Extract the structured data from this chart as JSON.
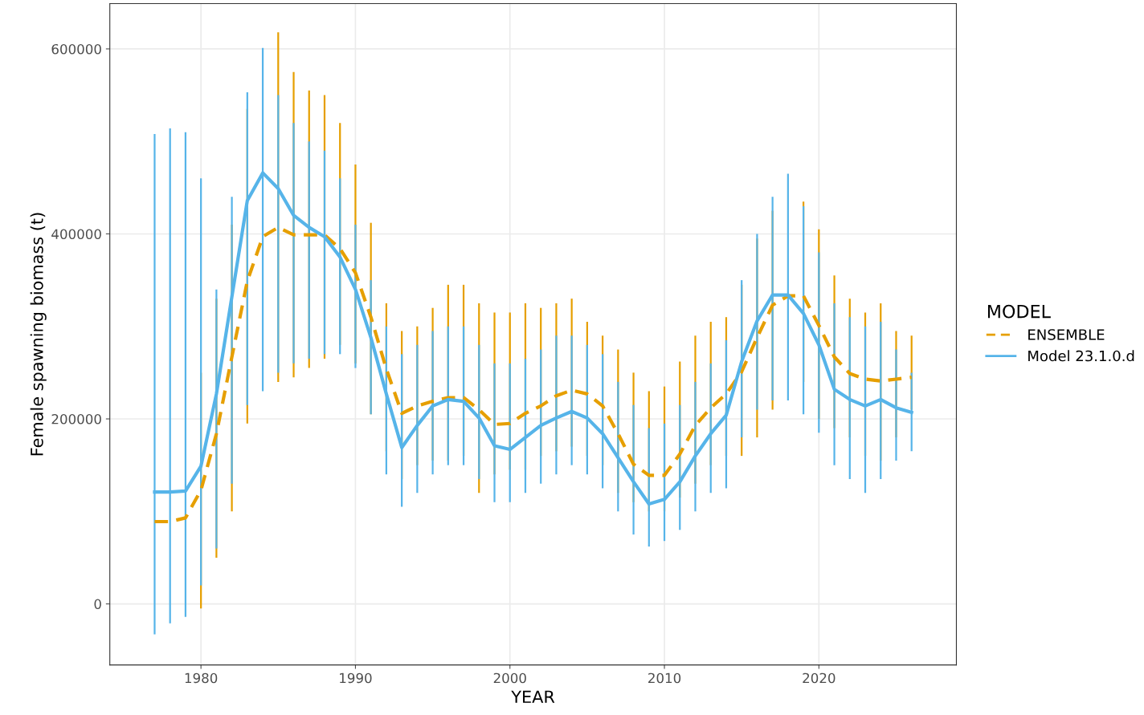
{
  "chart_data": {
    "type": "line",
    "xlabel": "YEAR",
    "ylabel": "Female spawning biomass (t)",
    "legend_title": "MODEL",
    "legend": "right",
    "grid": true,
    "marker": "none",
    "x": [
      1977,
      1978,
      1979,
      1980,
      1981,
      1982,
      1983,
      1984,
      1985,
      1986,
      1987,
      1988,
      1989,
      1990,
      1991,
      1992,
      1993,
      1994,
      1995,
      1996,
      1997,
      1998,
      1999,
      2000,
      2001,
      2002,
      2003,
      2004,
      2005,
      2006,
      2007,
      2008,
      2009,
      2010,
      2011,
      2012,
      2013,
      2014,
      2015,
      2016,
      2017,
      2018,
      2019,
      2020,
      2021,
      2022,
      2023,
      2024,
      2025,
      2026
    ],
    "xlim": [
      1974.1,
      2028.9
    ],
    "xticks": [
      1980,
      1990,
      2000,
      2010,
      2020
    ],
    "ylim": [
      -66000,
      649000
    ],
    "yticks": [
      0,
      200000,
      400000,
      600000
    ],
    "series": [
      {
        "name": "ENSEMBLE",
        "color": "#e69f00",
        "line_style": "dashed",
        "values": [
          89000,
          89000,
          93000,
          123000,
          184000,
          267000,
          349000,
          397000,
          407000,
          399000,
          399000,
          399000,
          384000,
          358000,
          310000,
          254000,
          206000,
          214000,
          219000,
          223000,
          223000,
          210000,
          194000,
          195000,
          206000,
          214000,
          225000,
          231000,
          227000,
          214000,
          184000,
          151000,
          139000,
          139000,
          162000,
          193000,
          212000,
          227000,
          251000,
          288000,
          323000,
          333000,
          333000,
          301000,
          267000,
          249000,
          243000,
          241000,
          243000,
          245000
        ],
        "errors": [
          null,
          null,
          null,
          [
            -5000,
            250000
          ],
          [
            50000,
            330000
          ],
          [
            100000,
            410000
          ],
          [
            195000,
            535000
          ],
          null,
          [
            240000,
            618000
          ],
          [
            245000,
            575000
          ],
          [
            255000,
            555000
          ],
          [
            265000,
            550000
          ],
          [
            280000,
            520000
          ],
          [
            260000,
            475000
          ],
          [
            205000,
            412000
          ],
          [
            165000,
            325000
          ],
          [
            135000,
            295000
          ],
          [
            150000,
            300000
          ],
          [
            155000,
            320000
          ],
          [
            155000,
            345000
          ],
          [
            160000,
            345000
          ],
          [
            120000,
            325000
          ],
          [
            140000,
            315000
          ],
          [
            145000,
            315000
          ],
          [
            145000,
            325000
          ],
          [
            160000,
            320000
          ],
          [
            165000,
            325000
          ],
          [
            170000,
            330000
          ],
          [
            160000,
            305000
          ],
          [
            150000,
            290000
          ],
          [
            120000,
            275000
          ],
          [
            110000,
            250000
          ],
          [
            100000,
            230000
          ],
          [
            100000,
            235000
          ],
          [
            115000,
            262000
          ],
          [
            130000,
            290000
          ],
          [
            150000,
            305000
          ],
          [
            160000,
            310000
          ],
          [
            160000,
            345000
          ],
          [
            180000,
            395000
          ],
          [
            210000,
            425000
          ],
          null,
          [
            240000,
            435000
          ],
          [
            200000,
            405000
          ],
          [
            190000,
            355000
          ],
          [
            180000,
            330000
          ],
          [
            160000,
            315000
          ],
          [
            155000,
            325000
          ],
          [
            180000,
            295000
          ],
          [
            210000,
            290000
          ]
        ]
      },
      {
        "name": "Model 23.1.0.d",
        "color": "#56b4e9",
        "line_style": "solid",
        "values": [
          121000,
          121000,
          122000,
          149000,
          227000,
          332000,
          436000,
          466000,
          449000,
          420000,
          407000,
          397000,
          375000,
          340000,
          288000,
          227000,
          169000,
          193000,
          214000,
          221000,
          219000,
          201000,
          171000,
          167000,
          180000,
          193000,
          201000,
          208000,
          201000,
          184000,
          158000,
          132000,
          108000,
          113000,
          132000,
          160000,
          184000,
          204000,
          262000,
          306000,
          334000,
          334000,
          314000,
          280000,
          232000,
          221000,
          214000,
          221000,
          212000,
          207000
        ],
        "errors": [
          [
            -33000,
            508000
          ],
          [
            -21000,
            514000
          ],
          [
            -14000,
            510000
          ],
          [
            20000,
            460000
          ],
          [
            60000,
            340000
          ],
          [
            130000,
            440000
          ],
          [
            215000,
            553000
          ],
          [
            230000,
            601000
          ],
          [
            250000,
            550000
          ],
          [
            260000,
            520000
          ],
          [
            265000,
            500000
          ],
          [
            270000,
            490000
          ],
          [
            270000,
            460000
          ],
          [
            255000,
            410000
          ],
          [
            205000,
            350000
          ],
          [
            140000,
            300000
          ],
          [
            105000,
            270000
          ],
          [
            120000,
            280000
          ],
          [
            140000,
            295000
          ],
          [
            150000,
            300000
          ],
          [
            150000,
            300000
          ],
          [
            135000,
            280000
          ],
          [
            110000,
            260000
          ],
          [
            110000,
            260000
          ],
          [
            120000,
            265000
          ],
          [
            130000,
            275000
          ],
          [
            140000,
            290000
          ],
          [
            150000,
            290000
          ],
          [
            140000,
            280000
          ],
          [
            125000,
            270000
          ],
          [
            100000,
            240000
          ],
          [
            75000,
            215000
          ],
          [
            62000,
            190000
          ],
          [
            68000,
            195000
          ],
          [
            80000,
            215000
          ],
          [
            100000,
            240000
          ],
          [
            120000,
            260000
          ],
          [
            125000,
            285000
          ],
          [
            180000,
            350000
          ],
          [
            210000,
            400000
          ],
          [
            220000,
            440000
          ],
          [
            220000,
            465000
          ],
          [
            205000,
            430000
          ],
          [
            185000,
            380000
          ],
          [
            150000,
            325000
          ],
          [
            135000,
            310000
          ],
          [
            120000,
            300000
          ],
          [
            135000,
            305000
          ],
          [
            155000,
            275000
          ],
          [
            165000,
            250000
          ]
        ]
      }
    ]
  }
}
